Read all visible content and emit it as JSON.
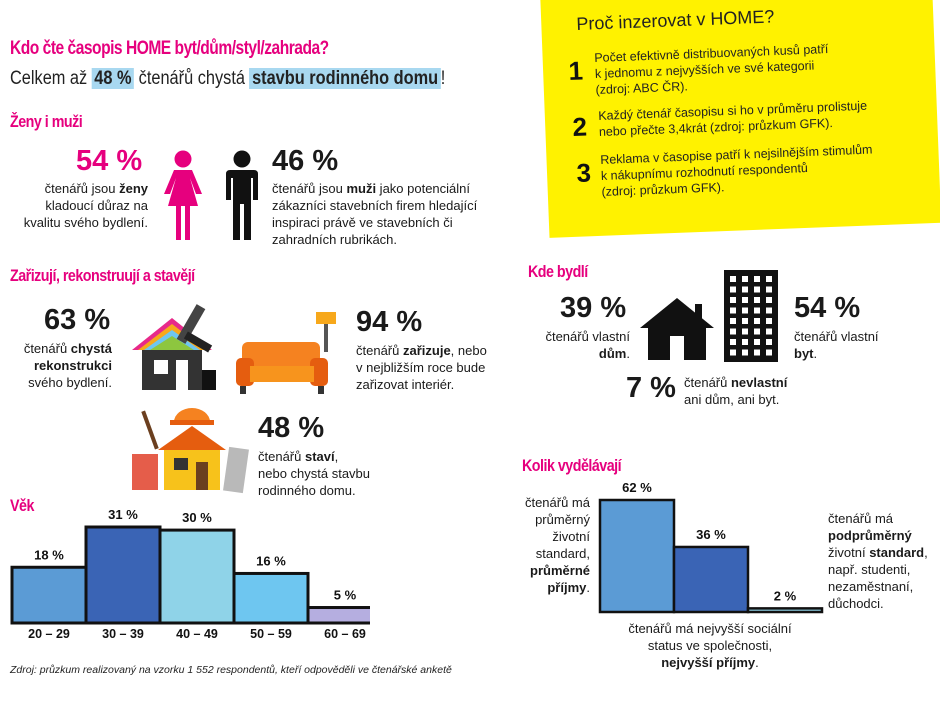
{
  "header": {
    "title": "Kdo čte časopis HOME byt/dům/styl/zahrada?",
    "subtitle_pre": "Celkem až ",
    "subtitle_pct": "48 %",
    "subtitle_mid": " čtenářů chystá ",
    "subtitle_hl": "stavbu rodinného domu",
    "subtitle_end": "!"
  },
  "why": {
    "title": "Proč inzerovat v HOME?",
    "items": [
      {
        "num": "1",
        "lines": [
          "Počet efektivně distribuovaných kusů patří",
          "k jednomu z nejvyšších ve své kategorii",
          "(zdroj: ABC ČR)."
        ]
      },
      {
        "num": "2",
        "lines": [
          "Každý čtenář časopisu si ho v průměru prolistuje",
          "nebo přečte 3,4krát (zdroj: průzkum GFK)."
        ]
      },
      {
        "num": "3",
        "lines": [
          "Reklama v časopise patří k nejsilnějším stimulům",
          "k nákupnímu rozhodnutí respondentů",
          "(zdroj: průzkum GFK)."
        ]
      }
    ]
  },
  "gender": {
    "title": "Ženy i muži",
    "women_pct": "54 %",
    "women_l1a": "čtenářů jsou ",
    "women_l1b": "ženy",
    "women_l2": "kladoucí důraz na",
    "women_l3": "kvalitu svého bydlení.",
    "men_pct": "46 %",
    "men_l1a": "čtenářů jsou ",
    "men_l1b": "muži",
    "men_l1c": " jako potenciální",
    "men_l2": "zákazníci stavebních firem hledající",
    "men_l3": "inspiraci právě ve stavebních či",
    "men_l4": "zahradních rubrikách."
  },
  "build": {
    "title": "Zařizují, rekonstruují a stavějí",
    "renov_pct": "63 %",
    "renov_l1a": "čtenářů ",
    "renov_l1b": "chystá",
    "renov_l2": "rekonstrukci",
    "renov_l3": "svého bydlení.",
    "furnish_pct": "94 %",
    "furnish_l1a": "čtenářů ",
    "furnish_l1b": "zařizuje",
    "furnish_l1c": ", nebo",
    "furnish_l2": "v nejbližším roce bude",
    "furnish_l3": "zařizovat interiér.",
    "builds_pct": "48 %",
    "builds_l1a": "čtenářů ",
    "builds_l1b": "staví",
    "builds_l1c": ",",
    "builds_l2": "nebo chystá stavbu",
    "builds_l3": "rodinného domu."
  },
  "living": {
    "title": "Kde bydlí",
    "house_pct": "39 %",
    "house_l1": "čtenářů vlastní",
    "house_l2": "dům",
    "house_l2b": ".",
    "flat_pct": "54 %",
    "flat_l1": "čtenářů vlastní",
    "flat_l2": "byt",
    "flat_l2b": ".",
    "none_pct": "7 %",
    "none_l1a": "čtenářů ",
    "none_l1b": "nevlastní",
    "none_l2": "ani dům, ani byt."
  },
  "income": {
    "title": "Kolik vydělávají",
    "left_l1": "čtenářů má",
    "left_l2": "průměrný",
    "left_l3": "životní",
    "left_l4": "standard,",
    "left_l5": "průměrné",
    "left_l6": "příjmy",
    "left_l6b": ".",
    "right_l1": "čtenářů má",
    "right_l2": "podprůměrný",
    "right_l3a": "životní ",
    "right_l3b": "standard",
    "right_l3c": ",",
    "right_l4": "např. studenti,",
    "right_l5": "nezaměstnaní,",
    "right_l6": "důchodci.",
    "bottom_l1": "čtenářů má nejvyšší sociální",
    "bottom_l2": "status ve společnosti,",
    "bottom_l3": "nejvyšší příjmy",
    "bottom_l3b": "."
  },
  "age": {
    "title": "Věk"
  },
  "source": "Zdroj: průzkum realizovaný na vzorku 1 552 respondentů, kteří odpověděli ve čtenářské anketě",
  "colors": {
    "pink": "#e6007e",
    "yellow": "#fff200",
    "bar1": "#5b9bd5",
    "bar2": "#3a64b5",
    "bar3": "#8fd3e8",
    "bar4": "#6ec6f0",
    "bar5": "#b5aee0"
  },
  "chart_data": [
    {
      "type": "bar",
      "title": "Věk",
      "categories": [
        "20 – 29",
        "30 – 39",
        "40 – 49",
        "50 – 59",
        "60 – 69"
      ],
      "values": [
        18,
        31,
        30,
        16,
        5
      ],
      "labels": [
        "18 %",
        "31 %",
        "30 %",
        "16 %",
        "5 %"
      ],
      "ylim": [
        0,
        35
      ]
    },
    {
      "type": "bar",
      "title": "Kolik vydělávají",
      "categories": [
        "průměrné příjmy",
        "podprůměrné",
        "nejvyšší příjmy"
      ],
      "values": [
        62,
        36,
        2
      ],
      "labels": [
        "62 %",
        "36 %",
        "2 %"
      ],
      "ylim": [
        0,
        65
      ]
    }
  ]
}
